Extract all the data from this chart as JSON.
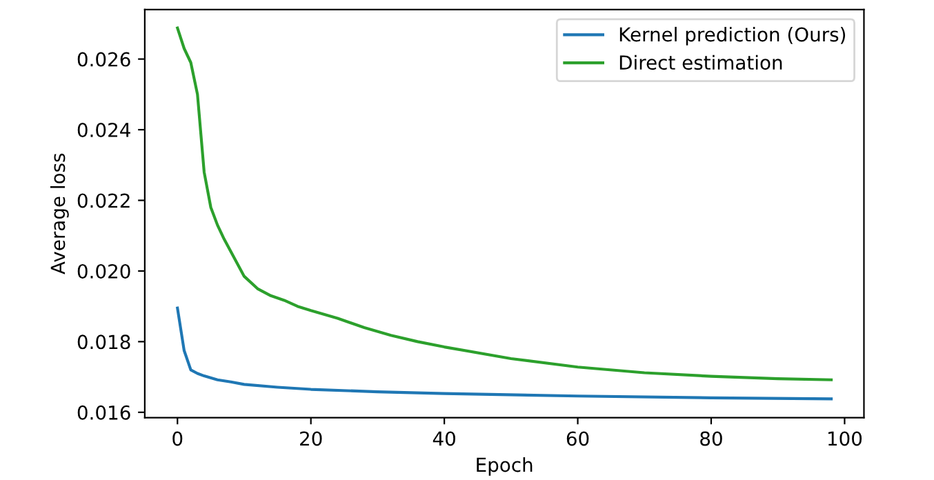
{
  "chart_data": {
    "type": "line",
    "xlabel": "Epoch",
    "ylabel": "Average loss",
    "xlim": [
      -4.9,
      102.9
    ],
    "ylim": [
      0.01585,
      0.0274
    ],
    "xticks": [
      0,
      20,
      40,
      60,
      80,
      100
    ],
    "yticks": [
      {
        "value": 0.016,
        "label": "0.016"
      },
      {
        "value": 0.018,
        "label": "0.018"
      },
      {
        "value": 0.02,
        "label": "0.020"
      },
      {
        "value": 0.022,
        "label": "0.022"
      },
      {
        "value": 0.024,
        "label": "0.024"
      },
      {
        "value": 0.026,
        "label": "0.026"
      }
    ],
    "legend": "top right",
    "grid": false,
    "series": [
      {
        "name": "Kernel prediction (Ours)",
        "color": "#1f77b4",
        "x": [
          0,
          1,
          2,
          3,
          4,
          6,
          8,
          10,
          15,
          20,
          30,
          40,
          60,
          80,
          98
        ],
        "values": [
          0.01895,
          0.01775,
          0.0172,
          0.0171,
          0.01703,
          0.01692,
          0.01686,
          0.01679,
          0.01671,
          0.01665,
          0.01658,
          0.01653,
          0.01646,
          0.01641,
          0.01638
        ]
      },
      {
        "name": "Direct estimation",
        "color": "#2ca02c",
        "x": [
          0,
          1,
          2,
          3,
          4,
          5,
          6,
          7,
          8,
          9,
          10,
          12,
          14,
          16,
          18,
          20,
          24,
          28,
          32,
          36,
          40,
          50,
          60,
          70,
          80,
          90,
          98
        ],
        "values": [
          0.02688,
          0.0263,
          0.0259,
          0.025,
          0.0228,
          0.0218,
          0.0213,
          0.0209,
          0.02055,
          0.0202,
          0.01985,
          0.0195,
          0.0193,
          0.01917,
          0.019,
          0.01888,
          0.01866,
          0.0184,
          0.01818,
          0.018,
          0.01785,
          0.01752,
          0.01728,
          0.01712,
          0.01702,
          0.01695,
          0.01692
        ]
      }
    ]
  }
}
